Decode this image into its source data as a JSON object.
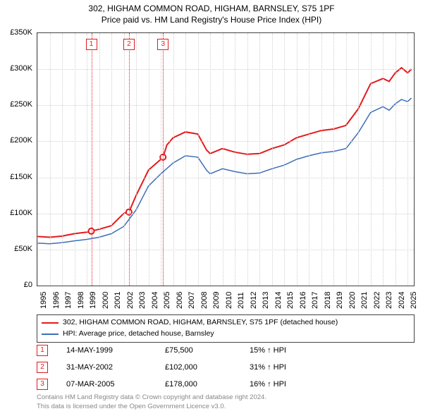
{
  "title": {
    "line1": "302, HIGHAM COMMON ROAD, HIGHAM, BARNSLEY, S75 1PF",
    "line2": "Price paid vs. HM Land Registry's House Price Index (HPI)"
  },
  "chart": {
    "type": "line",
    "background_color": "#ffffff",
    "grid_color": "#d0d0d0",
    "border_color": "#444444",
    "title_fontsize": 12,
    "axis_fontsize": 11,
    "x_years": [
      1995,
      1996,
      1997,
      1998,
      1999,
      2000,
      2001,
      2002,
      2003,
      2004,
      2005,
      2006,
      2007,
      2008,
      2009,
      2010,
      2011,
      2012,
      2013,
      2014,
      2015,
      2016,
      2017,
      2018,
      2019,
      2020,
      2021,
      2022,
      2023,
      2024,
      2025
    ],
    "xlim": [
      1995,
      2025.5
    ],
    "ylim": [
      0,
      350000
    ],
    "ytick_step": 50000,
    "y_labels": [
      "£0",
      "£50K",
      "£100K",
      "£150K",
      "£200K",
      "£250K",
      "£300K",
      "£350K"
    ],
    "series": [
      {
        "name": "302, HIGHAM COMMON ROAD, HIGHAM, BARNSLEY, S75 1PF (detached house)",
        "color": "#e31a1c",
        "line_width": 2,
        "points": [
          [
            1995,
            68000
          ],
          [
            1996,
            67000
          ],
          [
            1997,
            68500
          ],
          [
            1998,
            72000
          ],
          [
            1999,
            74000
          ],
          [
            1999.37,
            75500
          ],
          [
            2000,
            78000
          ],
          [
            2001,
            83000
          ],
          [
            2002,
            100000
          ],
          [
            2002.42,
            102000
          ],
          [
            2003,
            125000
          ],
          [
            2004,
            160000
          ],
          [
            2005,
            175000
          ],
          [
            2005.18,
            178000
          ],
          [
            2005.5,
            195000
          ],
          [
            2006,
            205000
          ],
          [
            2007,
            213000
          ],
          [
            2008,
            210000
          ],
          [
            2008.7,
            188000
          ],
          [
            2009,
            183000
          ],
          [
            2010,
            190000
          ],
          [
            2011,
            185000
          ],
          [
            2012,
            182000
          ],
          [
            2013,
            183000
          ],
          [
            2014,
            190000
          ],
          [
            2015,
            195000
          ],
          [
            2016,
            205000
          ],
          [
            2017,
            210000
          ],
          [
            2018,
            215000
          ],
          [
            2019,
            217000
          ],
          [
            2020,
            222000
          ],
          [
            2021,
            245000
          ],
          [
            2022,
            280000
          ],
          [
            2023,
            287000
          ],
          [
            2023.5,
            283000
          ],
          [
            2024,
            295000
          ],
          [
            2024.5,
            302000
          ],
          [
            2025,
            295000
          ],
          [
            2025.3,
            300000
          ]
        ],
        "markers": [
          {
            "x": 1999.37,
            "y": 75500
          },
          {
            "x": 2002.42,
            "y": 102000
          },
          {
            "x": 2005.18,
            "y": 178000
          }
        ],
        "marker_color": "#e31a1c",
        "marker_fill": "#ffffff",
        "marker_radius": 4
      },
      {
        "name": "HPI: Average price, detached house, Barnsley",
        "color": "#3b6fb6",
        "line_width": 1.5,
        "points": [
          [
            1995,
            59000
          ],
          [
            1996,
            58000
          ],
          [
            1997,
            59500
          ],
          [
            1998,
            62000
          ],
          [
            1999,
            64000
          ],
          [
            2000,
            67000
          ],
          [
            2001,
            72000
          ],
          [
            2002,
            82000
          ],
          [
            2003,
            105000
          ],
          [
            2004,
            138000
          ],
          [
            2005,
            155000
          ],
          [
            2006,
            170000
          ],
          [
            2007,
            180000
          ],
          [
            2008,
            178000
          ],
          [
            2008.7,
            160000
          ],
          [
            2009,
            155000
          ],
          [
            2010,
            162000
          ],
          [
            2011,
            158000
          ],
          [
            2012,
            155000
          ],
          [
            2013,
            156000
          ],
          [
            2014,
            162000
          ],
          [
            2015,
            167000
          ],
          [
            2016,
            175000
          ],
          [
            2017,
            180000
          ],
          [
            2018,
            184000
          ],
          [
            2019,
            186000
          ],
          [
            2020,
            190000
          ],
          [
            2021,
            212000
          ],
          [
            2022,
            240000
          ],
          [
            2023,
            248000
          ],
          [
            2023.5,
            243000
          ],
          [
            2024,
            252000
          ],
          [
            2024.5,
            258000
          ],
          [
            2025,
            255000
          ],
          [
            2025.3,
            260000
          ]
        ]
      }
    ],
    "events": [
      {
        "n": "1",
        "x": 1999.37,
        "date": "14-MAY-1999",
        "price": "£75,500",
        "pct": "15% ↑ HPI",
        "color": "#e31a1c"
      },
      {
        "n": "2",
        "x": 2002.42,
        "date": "31-MAY-2002",
        "price": "£102,000",
        "pct": "31% ↑ HPI",
        "color": "#e31a1c"
      },
      {
        "n": "3",
        "x": 2005.18,
        "date": "07-MAR-2005",
        "price": "£178,000",
        "pct": "16% ↑ HPI",
        "color": "#e31a1c"
      }
    ]
  },
  "legend": {
    "rows": [
      {
        "color": "#e31a1c",
        "label": "302, HIGHAM COMMON ROAD, HIGHAM, BARNSLEY, S75 1PF (detached house)"
      },
      {
        "color": "#3b6fb6",
        "label": "HPI: Average price, detached house, Barnsley"
      }
    ]
  },
  "credits": {
    "line1": "Contains HM Land Registry data © Crown copyright and database right 2024.",
    "line2": "This data is licensed under the Open Government Licence v3.0."
  }
}
